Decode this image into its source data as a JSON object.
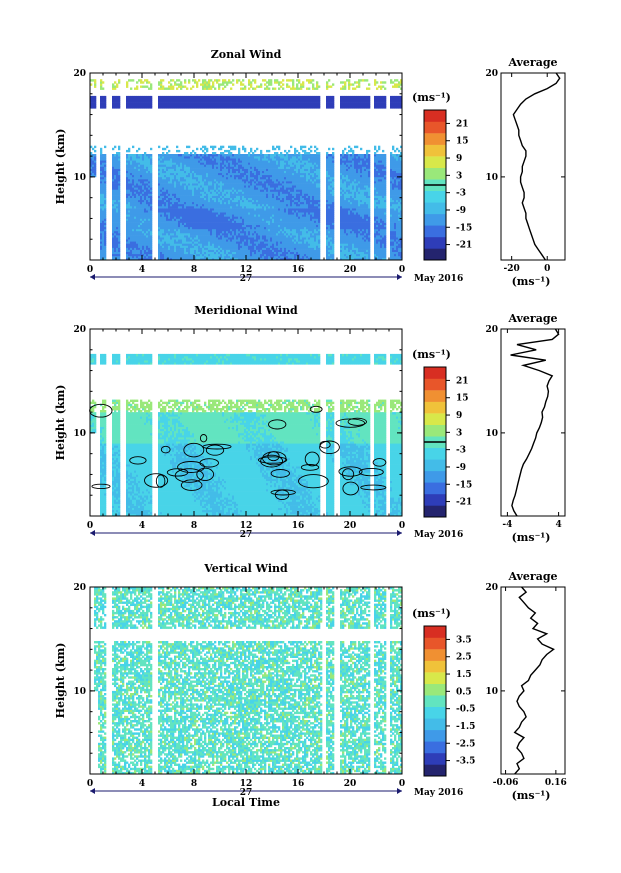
{
  "chart_data": [
    {
      "type": "heatmap",
      "title": "Zonal Wind",
      "ylabel": "Height (km)",
      "ylim": [
        2.0,
        20.0
      ],
      "x_ticks": [
        "0",
        "4",
        "8",
        "12",
        "16",
        "20",
        "0"
      ],
      "x_day": "27",
      "x_month": "May 2016",
      "y_ticks": [
        "10",
        "20"
      ],
      "colorbar": {
        "unit": "(ms⁻¹)",
        "range": [
          -24,
          24
        ],
        "ticks": [
          "21",
          "15",
          "9",
          "3",
          "-3",
          "-9",
          "-15",
          "-21"
        ],
        "zero_line": true
      },
      "average_profile": {
        "title": "Average",
        "xlabel": "(ms⁻¹)",
        "x_ticks": [
          "-20",
          "0"
        ],
        "xlim": [
          -26,
          10
        ],
        "y_ticks": [
          "10",
          "20"
        ],
        "heights": [
          2.0,
          2.5,
          3.0,
          3.5,
          4.0,
          4.5,
          5.0,
          5.5,
          6.0,
          6.5,
          7.0,
          7.5,
          8.0,
          8.5,
          9.0,
          9.5,
          10.0,
          10.5,
          11.0,
          11.5,
          12.0,
          12.5,
          13.0,
          13.5,
          14.0,
          14.5,
          15.0,
          15.5,
          16.0,
          16.5,
          17.0,
          17.5,
          18.0,
          18.5,
          19.0,
          19.5,
          20.0
        ],
        "values": [
          -1,
          -3,
          -5,
          -7,
          -8,
          -9,
          -10,
          -11,
          -12,
          -12,
          -13,
          -14,
          -13,
          -13,
          -14,
          -15,
          -15,
          -14,
          -14,
          -13,
          -12,
          -12,
          -14,
          -15,
          -16,
          -16,
          -17,
          -18,
          -19,
          -17,
          -15,
          -12,
          -7,
          0,
          5,
          7,
          5
        ]
      }
    },
    {
      "type": "heatmap",
      "title": "Meridional Wind",
      "ylabel": "Height (km)",
      "ylim": [
        2.0,
        20.0
      ],
      "x_ticks": [
        "0",
        "4",
        "8",
        "12",
        "16",
        "20",
        "0"
      ],
      "x_day": "27",
      "x_month": "May 2016",
      "y_ticks": [
        "10",
        "20"
      ],
      "colorbar": {
        "unit": "(ms⁻¹)",
        "range": [
          -24,
          24
        ],
        "ticks": [
          "21",
          "15",
          "9",
          "3",
          "-3",
          "-9",
          "-15",
          "-21"
        ],
        "zero_line": true
      },
      "average_profile": {
        "title": "Average",
        "xlabel": "(ms⁻¹)",
        "x_ticks": [
          "-4",
          "4"
        ],
        "xlim": [
          -5,
          5
        ],
        "y_ticks": [
          "10",
          "20"
        ],
        "heights": [
          2.0,
          2.5,
          3.0,
          3.5,
          4.0,
          4.5,
          5.0,
          5.5,
          6.0,
          6.5,
          7.0,
          7.5,
          8.0,
          8.5,
          9.0,
          9.5,
          10.0,
          10.5,
          11.0,
          11.5,
          12.0,
          12.5,
          13.0,
          13.5,
          14.0,
          14.5,
          15.0,
          15.5,
          16.0,
          16.5,
          17.0,
          17.5,
          18.0,
          18.5,
          19.0,
          19.5,
          20.0
        ],
        "values": [
          -2.5,
          -3.0,
          -3.3,
          -3.1,
          -2.8,
          -2.6,
          -2.4,
          -2.2,
          -2.0,
          -1.8,
          -1.5,
          -1.0,
          -0.6,
          -0.2,
          0.1,
          0.4,
          0.6,
          1.0,
          1.3,
          1.5,
          1.4,
          1.8,
          2.0,
          2.3,
          2.4,
          2.2,
          2.5,
          3.0,
          1.0,
          -1.5,
          2.0,
          -3.5,
          0.5,
          -2.5,
          3.0,
          4.0,
          3.5
        ]
      }
    },
    {
      "type": "heatmap",
      "title": "Vertical Wind",
      "ylabel": "Height (km)",
      "xlabel": "Local Time",
      "ylim": [
        2.0,
        20.0
      ],
      "x_ticks": [
        "0",
        "4",
        "8",
        "12",
        "16",
        "20",
        "0"
      ],
      "x_day": "27",
      "x_month": "May 2016",
      "y_ticks": [
        "10",
        "20"
      ],
      "colorbar": {
        "unit": "(ms⁻¹)",
        "range": [
          -4,
          4
        ],
        "ticks": [
          "3.5",
          "2.5",
          "1.5",
          "0.5",
          "-0.5",
          "-1.5",
          "-2.5",
          "-3.5"
        ],
        "zero_line": false
      },
      "average_profile": {
        "title": "Average",
        "xlabel": "(ms⁻¹)",
        "x_ticks": [
          "-0.06",
          "0.16"
        ],
        "xlim": [
          -0.08,
          0.2
        ],
        "y_ticks": [
          "10",
          "20"
        ],
        "heights": [
          2.0,
          2.5,
          3.0,
          3.5,
          4.0,
          4.5,
          5.0,
          5.5,
          6.0,
          6.5,
          7.0,
          7.5,
          8.0,
          8.5,
          9.0,
          9.5,
          10.0,
          10.5,
          11.0,
          11.5,
          12.0,
          12.5,
          13.0,
          13.5,
          14.0,
          14.5,
          15.0,
          15.5,
          16.0,
          16.5,
          17.0,
          17.5,
          18.0,
          18.5,
          19.0,
          19.5,
          20.0
        ],
        "values": [
          -0.02,
          0.0,
          -0.01,
          0.02,
          0.01,
          -0.01,
          0.0,
          0.02,
          -0.02,
          0.0,
          0.01,
          0.03,
          0.02,
          0.0,
          -0.01,
          0.0,
          0.02,
          0.01,
          0.04,
          0.05,
          0.07,
          0.09,
          0.1,
          0.12,
          0.15,
          0.1,
          0.08,
          0.12,
          0.06,
          0.08,
          0.05,
          0.07,
          0.04,
          0.02,
          0.0,
          0.03,
          0.01
        ]
      }
    }
  ]
}
